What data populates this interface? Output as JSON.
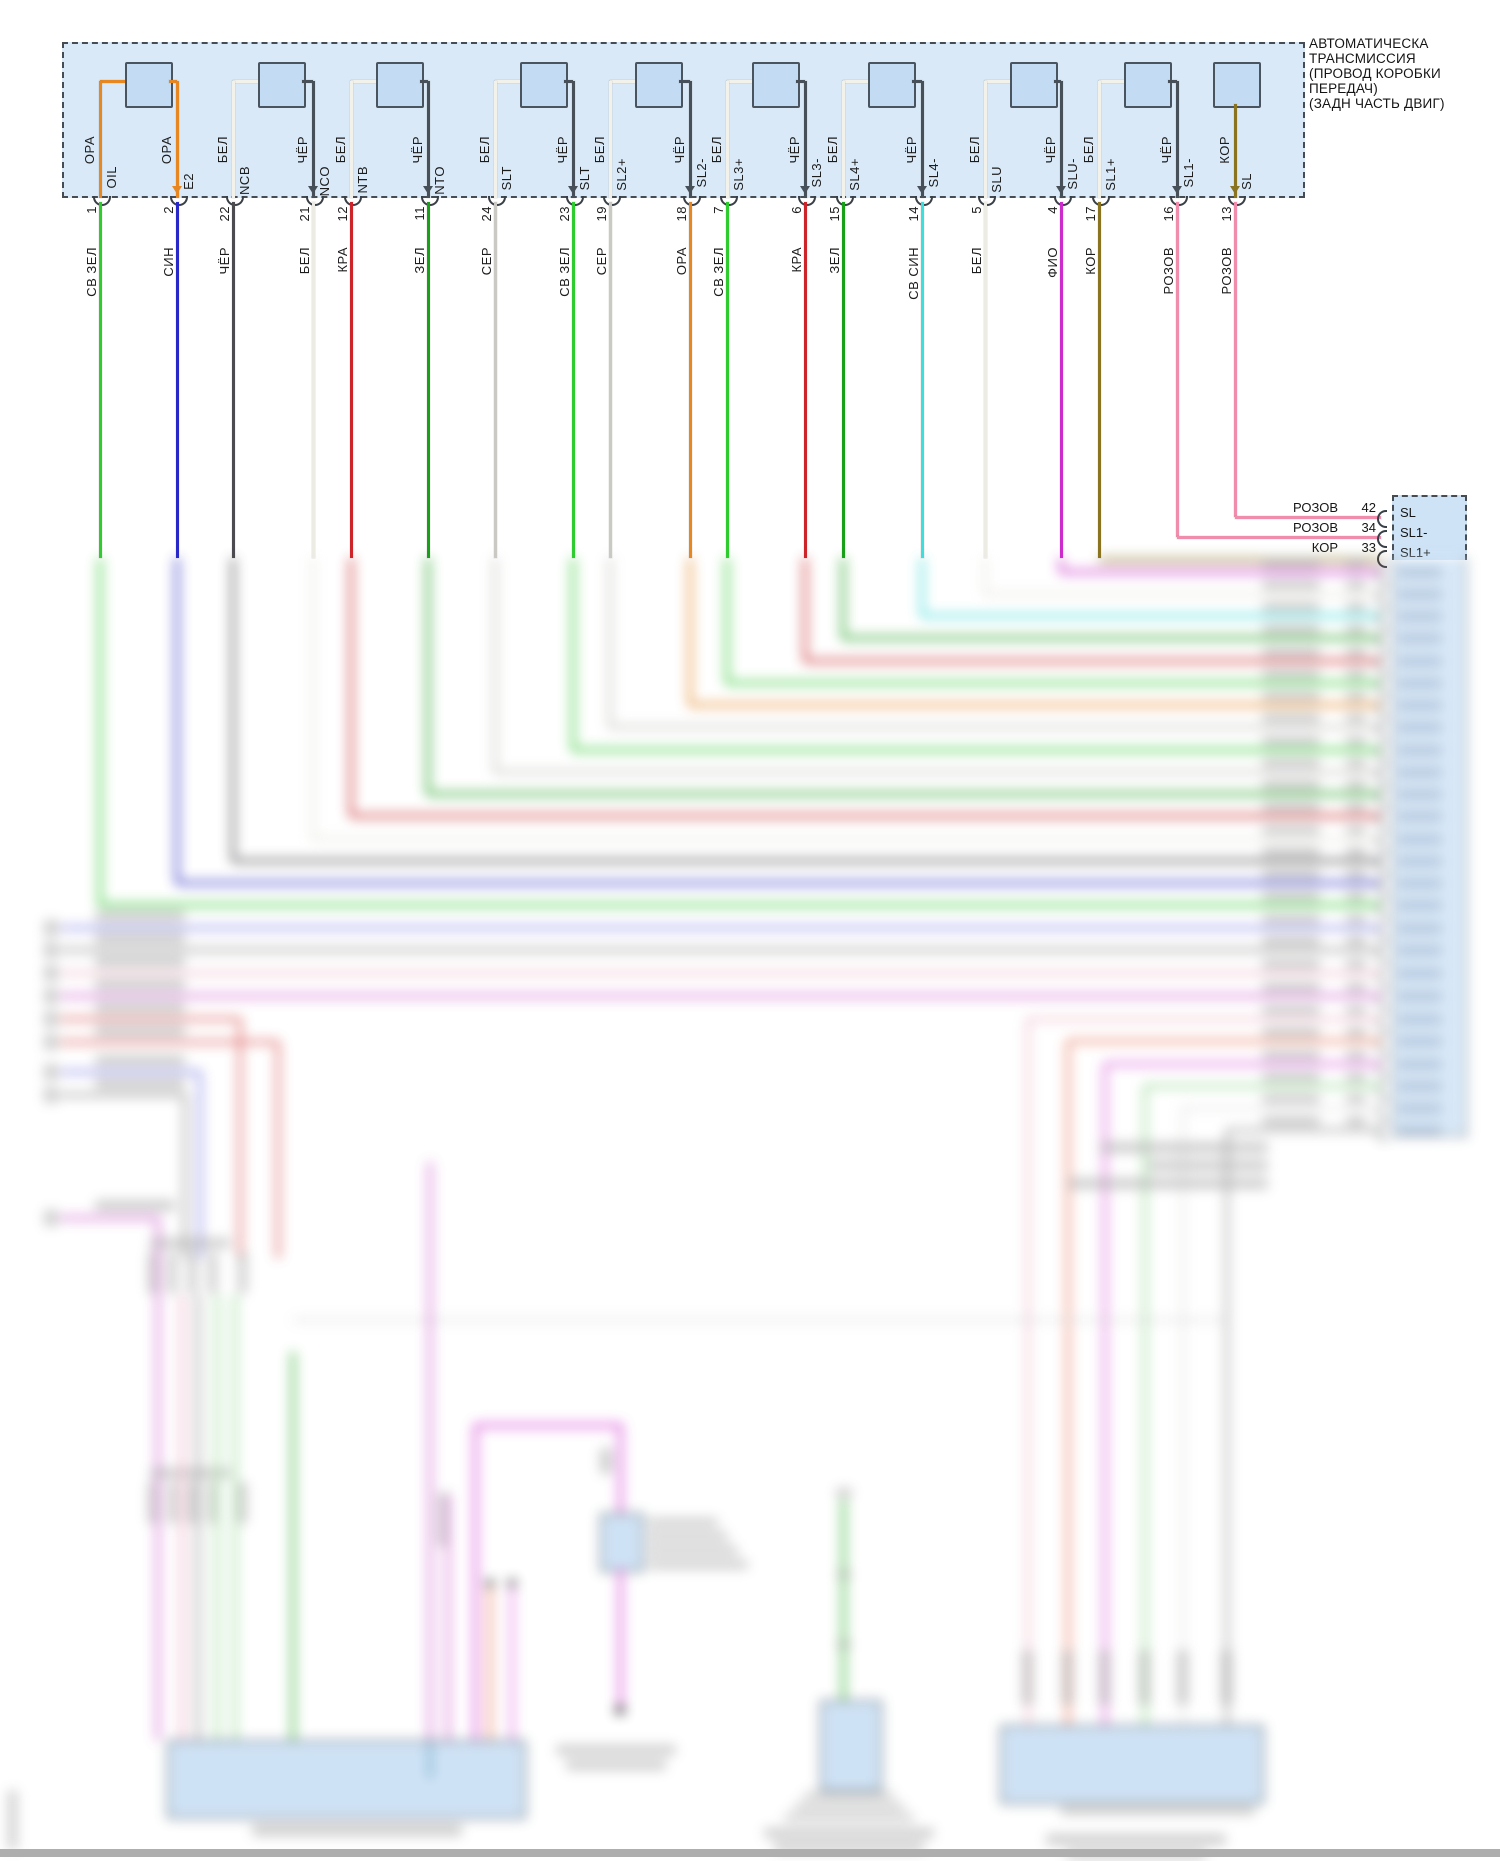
{
  "title": {
    "lines": [
      "АВТОМАТИЧЕСКА",
      "ТРАНСМИССИЯ",
      "(ПРОВОД КОРОБКИ",
      "ПЕРЕДАЧ)",
      "(ЗАДН ЧАСТЬ ДВИГ)"
    ]
  },
  "transmission_box": {
    "wires": [
      {
        "pin": "OIL",
        "inner_color": "ОРА",
        "number": "1",
        "harness_color": "СВ ЗЕЛ"
      },
      {
        "pin": "E2",
        "inner_color": "ОРА",
        "number": "2",
        "harness_color": "СИН"
      },
      {
        "pin": "NCB",
        "inner_color": "БЕЛ",
        "number": "22",
        "harness_color": "ЧЁР"
      },
      {
        "pin": "NCO",
        "inner_color": "ЧЁР",
        "number": "21",
        "harness_color": "БЕЛ"
      },
      {
        "pin": "NTB",
        "inner_color": "БЕЛ",
        "number": "12",
        "harness_color": "КРА"
      },
      {
        "pin": "NTO",
        "inner_color": "ЧЁР",
        "number": "11",
        "harness_color": "ЗЕЛ"
      },
      {
        "pin": "SLT",
        "inner_color": "БЕЛ",
        "number": "24",
        "harness_color": "СЕР"
      },
      {
        "pin": "SLT",
        "inner_color": "ЧЁР",
        "number": "23",
        "harness_color": "СВ ЗЕЛ"
      },
      {
        "pin": "SL2+",
        "inner_color": "БЕЛ",
        "number": "19",
        "harness_color": "СЕР"
      },
      {
        "pin": "SL2-",
        "inner_color": "ЧЁР",
        "number": "18",
        "harness_color": "ОРА"
      },
      {
        "pin": "SL3+",
        "inner_color": "БЕЛ",
        "number": "7",
        "harness_color": "СВ ЗЕЛ"
      },
      {
        "pin": "SL3-",
        "inner_color": "ЧЁР",
        "number": "6",
        "harness_color": "КРА"
      },
      {
        "pin": "SL4+",
        "inner_color": "БЕЛ",
        "number": "15",
        "harness_color": "ЗЕЛ"
      },
      {
        "pin": "SL4-",
        "inner_color": "ЧЁР",
        "number": "14",
        "harness_color": "СВ СИН"
      },
      {
        "pin": "SLU",
        "inner_color": "БЕЛ",
        "number": "5",
        "harness_color": "БЕЛ"
      },
      {
        "pin": "SLU-",
        "inner_color": "ЧЁР",
        "number": "4",
        "harness_color": "ФИО"
      },
      {
        "pin": "SL1+",
        "inner_color": "БЕЛ",
        "number": "17",
        "harness_color": "КОР"
      },
      {
        "pin": "SL1-",
        "inner_color": "ЧЁР",
        "number": "16",
        "harness_color": "РОЗОВ"
      },
      {
        "pin": "SL",
        "inner_color": "КОР",
        "number": "13",
        "harness_color": "РОЗОВ"
      }
    ]
  },
  "ecu_connector": {
    "visible_rows": [
      {
        "harness_color": "РОЗОВ",
        "number": "42",
        "pin": "SL"
      },
      {
        "harness_color": "РОЗОВ",
        "number": "34",
        "pin": "SL1-"
      },
      {
        "harness_color": "КОР",
        "number": "33",
        "pin": "SL1+"
      }
    ]
  },
  "palette": {
    "СВ ЗЕЛ": "#2ecc2e",
    "СИН": "#2828c8",
    "ЧЁР": "#4b4b50",
    "БЕЛ": "#edece4",
    "КРА": "#cc2428",
    "ЗЕЛ": "#18a018",
    "СЕР": "#cac9c4",
    "ОРА": "#e8871f",
    "СВ СИН": "#3cdede",
    "ФИО": "#cc2ccc",
    "КОР": "#8a7420",
    "РОЗОВ": "#f08cac",
    "inner_bel": "#f2f1ea",
    "inner_chyor": "#475059",
    "box_fill": "#d9e9f8",
    "square_fill": "#c3dcf4",
    "ecu_fill": "#cfe3f6",
    "line": "#454c54"
  }
}
